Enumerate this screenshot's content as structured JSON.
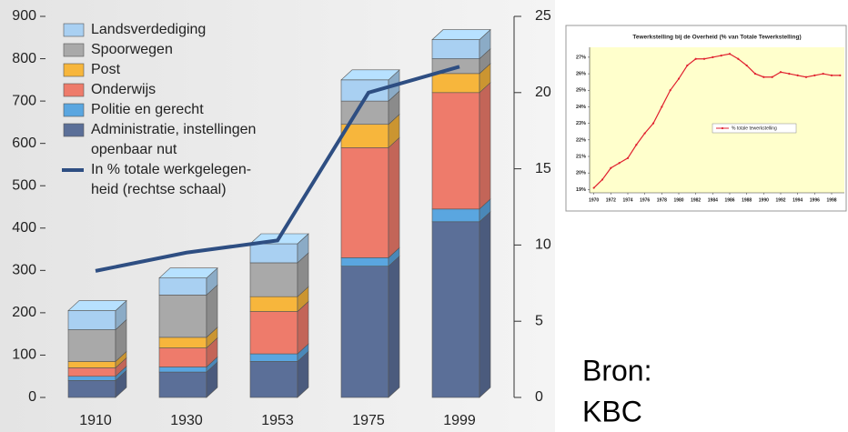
{
  "chart_data": [
    {
      "type": "bar",
      "stacked": true,
      "categories": [
        "1910",
        "1930",
        "1953",
        "1975",
        "1999"
      ],
      "series": [
        {
          "name": "Administratie, instellingen\nopenbaar nut",
          "color": "#5b6f98",
          "values": [
            40,
            60,
            85,
            310,
            415
          ]
        },
        {
          "name": "Politie en gerecht",
          "color": "#5aa6e0",
          "values": [
            10,
            12,
            18,
            20,
            30
          ]
        },
        {
          "name": "Onderwijs",
          "color": "#ee7b6b",
          "values": [
            20,
            45,
            100,
            260,
            275
          ]
        },
        {
          "name": "Post",
          "color": "#f7b63c",
          "values": [
            15,
            25,
            35,
            55,
            45
          ]
        },
        {
          "name": "Spoorwegen",
          "color": "#a9a9a9",
          "values": [
            75,
            100,
            80,
            55,
            35
          ]
        },
        {
          "name": "Landsverdediging",
          "color": "#a9d0f2",
          "values": [
            45,
            40,
            45,
            50,
            45
          ]
        },
        {
          "name": "In % totale werkgelegen-\nheid (rechtse schaal)",
          "color": "#2e4e82",
          "type": "line",
          "axis": "y2",
          "values": [
            8.3,
            9.5,
            10.3,
            20,
            21.7
          ]
        }
      ],
      "ylim": [
        0,
        900
      ],
      "yticks": [
        0,
        100,
        200,
        300,
        400,
        500,
        600,
        700,
        800,
        900
      ],
      "y2lim": [
        0,
        25
      ],
      "y2ticks": [
        0,
        5,
        10,
        15,
        20,
        25
      ],
      "legend": "upper left"
    },
    {
      "type": "line",
      "title": "Tewerkstelling bij de Overheid (% van Totale Tewerkstelling)",
      "x": [
        1970,
        1971,
        1972,
        1973,
        1974,
        1975,
        1976,
        1977,
        1978,
        1979,
        1980,
        1981,
        1982,
        1983,
        1984,
        1985,
        1986,
        1987,
        1988,
        1989,
        1990,
        1991,
        1992,
        1993,
        1994,
        1995,
        1996,
        1997,
        1998,
        1999
      ],
      "series": [
        {
          "name": "% totale tewerkstelling",
          "color": "#e0202f",
          "values": [
            19.1,
            19.6,
            20.3,
            20.6,
            20.9,
            21.7,
            22.4,
            23.0,
            24.0,
            25.0,
            25.7,
            26.5,
            26.9,
            26.9,
            27.0,
            27.1,
            27.2,
            26.9,
            26.5,
            26.0,
            25.8,
            25.8,
            26.1,
            26.0,
            25.9,
            25.8,
            25.9,
            26.0,
            25.9,
            25.9
          ]
        }
      ],
      "xlim": [
        1969.5,
        1999.5
      ],
      "xticks": [
        1970,
        1972,
        1974,
        1976,
        1978,
        1980,
        1982,
        1984,
        1986,
        1988,
        1990,
        1992,
        1994,
        1996,
        1998
      ],
      "ylim": [
        18.8,
        27.6
      ],
      "yticks": [
        {
          "value": 19,
          "label": "19%"
        },
        {
          "value": 20,
          "label": "20%"
        },
        {
          "value": 21,
          "label": "21%"
        },
        {
          "value": 22,
          "label": "22%"
        },
        {
          "value": 23,
          "label": "23%"
        },
        {
          "value": 24,
          "label": "24%"
        },
        {
          "value": 25,
          "label": "25%"
        },
        {
          "value": 26,
          "label": "26%"
        },
        {
          "value": 27,
          "label": "27%"
        }
      ],
      "background": "#ffffcc",
      "legend": "center"
    }
  ],
  "source_note": [
    "Bron:",
    "KBC"
  ]
}
